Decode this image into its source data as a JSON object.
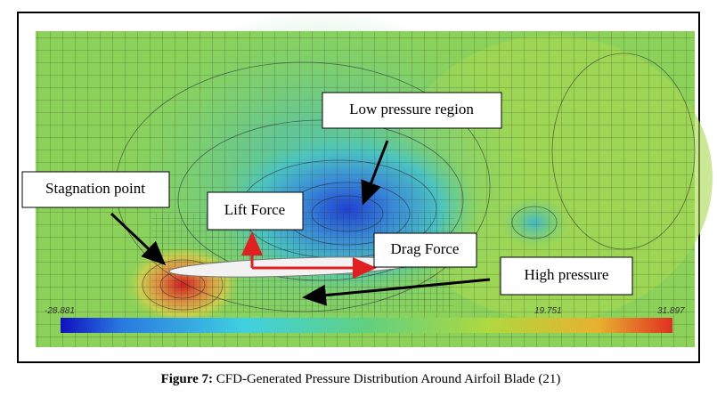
{
  "figure": {
    "annotations": {
      "low_pressure": "Low pressure region",
      "stagnation": "Stagnation point",
      "lift": "Lift Force",
      "drag": "Drag Force",
      "high_pressure": "High pressure"
    },
    "colorbar": {
      "labels": [
        "-28.881",
        "19.751",
        "31.897"
      ]
    }
  },
  "caption": {
    "label": "Figure 7:",
    "text": "CFD-Generated Pressure Distribution Around Airfoil Blade (21)"
  }
}
